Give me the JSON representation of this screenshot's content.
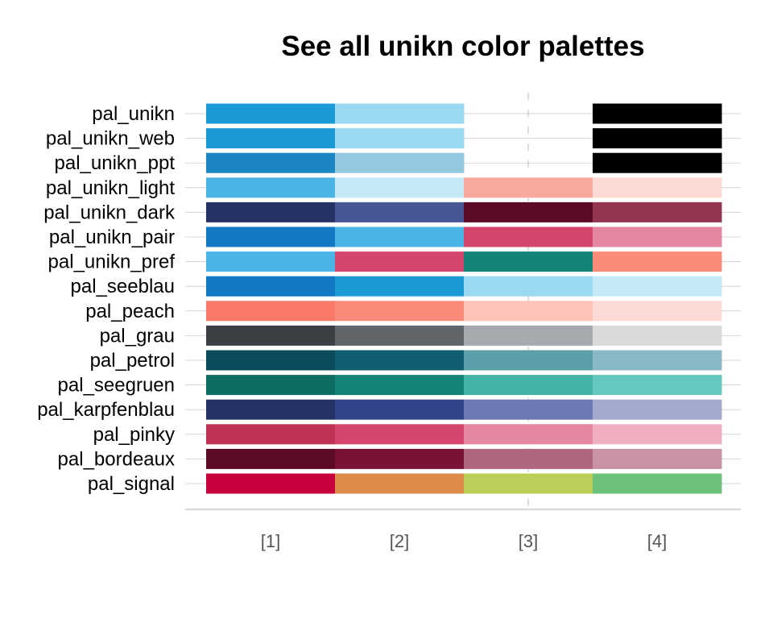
{
  "chart_data": {
    "type": "heatmap",
    "title": "See all unikn color palettes",
    "xlabel": "",
    "ylabel": "",
    "categories": [
      "[1]",
      "[2]",
      "[3]",
      "[4]"
    ],
    "grid": true,
    "legend": "none",
    "palettes": [
      {
        "name": "pal_unikn",
        "colors": [
          "#1b9ad6",
          "#9bd8f2",
          null,
          "#000000"
        ]
      },
      {
        "name": "pal_unikn_web",
        "colors": [
          "#1b9ad6",
          "#9bd8f2",
          null,
          "#000000"
        ]
      },
      {
        "name": "pal_unikn_ppt",
        "colors": [
          "#1c85c3",
          "#94c9e1",
          null,
          "#000000"
        ]
      },
      {
        "name": "pal_unikn_light",
        "colors": [
          "#4ab5e5",
          "#c6e9f8",
          "#f8a89d",
          "#fdd9d6"
        ]
      },
      {
        "name": "pal_unikn_dark",
        "colors": [
          "#253263",
          "#465793",
          "#5c0a27",
          "#933551"
        ]
      },
      {
        "name": "pal_unikn_pair",
        "colors": [
          "#1479c4",
          "#4ab5e5",
          "#d6456b",
          "#e586a2"
        ]
      },
      {
        "name": "pal_unikn_pref",
        "colors": [
          "#4ab5e5",
          "#d6456b",
          "#138376",
          "#fb8a7b"
        ]
      },
      {
        "name": "pal_seeblau",
        "colors": [
          "#1479c4",
          "#1b9ad6",
          "#9bd8f2",
          "#c6e9f8"
        ]
      },
      {
        "name": "pal_peach",
        "colors": [
          "#fb796b",
          "#fb8a7b",
          "#fcc3b9",
          "#fdd9d6"
        ]
      },
      {
        "name": "pal_grau",
        "colors": [
          "#3c3f43",
          "#5f6569",
          "#a6aaae",
          "#d9dadc"
        ]
      },
      {
        "name": "pal_petrol",
        "colors": [
          "#0c4b5e",
          "#0f5e72",
          "#5a9fa9",
          "#88b8c5"
        ]
      },
      {
        "name": "pal_seegruen",
        "colors": [
          "#0e6d63",
          "#138376",
          "#44b3a7",
          "#64c8bf"
        ]
      },
      {
        "name": "pal_karpfenblau",
        "colors": [
          "#253263",
          "#32448a",
          "#6d79b2",
          "#a1a9cc"
        ]
      },
      {
        "name": "pal_pinky",
        "colors": [
          "#bf3355",
          "#d6456b",
          "#e586a2",
          "#efafbf"
        ]
      },
      {
        "name": "pal_bordeaux",
        "colors": [
          "#5c0a27",
          "#7a1233",
          "#b0667d",
          "#c893a3"
        ]
      },
      {
        "name": "pal_signal",
        "colors": [
          "#c9003e",
          "#de8a4a",
          "#bcce58",
          "#6dc27b"
        ]
      }
    ]
  }
}
